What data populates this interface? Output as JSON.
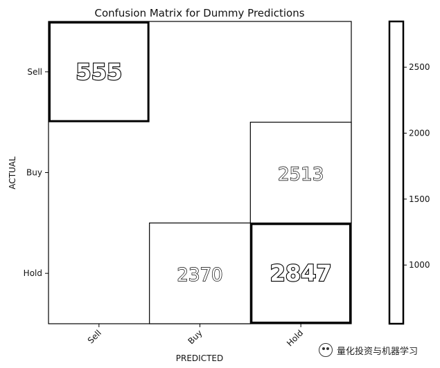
{
  "chart_data": {
    "type": "heatmap",
    "title": "Confusion Matrix for Dummy Predictions",
    "xlabel": "PREDICTED",
    "ylabel": "ACTUAL",
    "x_categories": [
      "Sell",
      "Buy",
      "Hold"
    ],
    "y_categories": [
      "Sell",
      "Buy",
      "Hold"
    ],
    "values": [
      [
        555,
        null,
        null
      ],
      [
        null,
        null,
        2513
      ],
      [
        null,
        2370,
        2847
      ]
    ],
    "highlighted_cells": [
      [
        0,
        0
      ],
      [
        2,
        2
      ]
    ],
    "colorbar": {
      "ticks": [
        1000,
        1500,
        2000,
        2500
      ],
      "range": [
        555,
        2847
      ]
    }
  },
  "watermark": {
    "text": "量化投资与机器学习",
    "icon": "wechat-icon"
  }
}
